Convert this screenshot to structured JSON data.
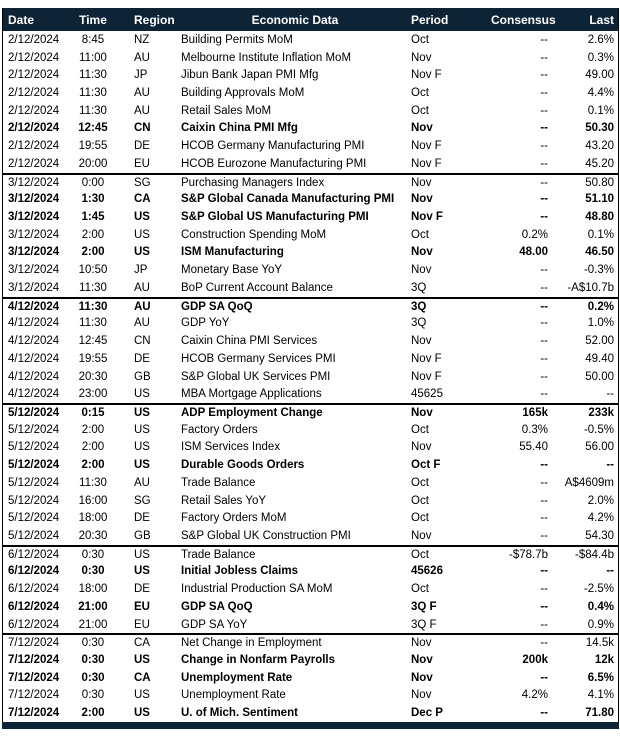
{
  "colors": {
    "header_bg": "#0d2336",
    "header_text": "#ffffff",
    "row_text": "#000000",
    "separator": "#000000"
  },
  "table": {
    "columns": [
      {
        "key": "date",
        "label": "Date"
      },
      {
        "key": "time",
        "label": "Time"
      },
      {
        "key": "region",
        "label": "Region"
      },
      {
        "key": "name",
        "label": "Economic Data"
      },
      {
        "key": "period",
        "label": "Period"
      },
      {
        "key": "consensus",
        "label": "Consensus"
      },
      {
        "key": "last",
        "label": "Last"
      }
    ],
    "rows": [
      {
        "date": "2/12/2024",
        "time": "8:45",
        "region": "NZ",
        "name": "Building Permits MoM",
        "period": "Oct",
        "consensus": "--",
        "last": "2.6%",
        "bold": false,
        "day_break": false
      },
      {
        "date": "2/12/2024",
        "time": "11:00",
        "region": "AU",
        "name": "Melbourne Institute Inflation MoM",
        "period": "Nov",
        "consensus": "--",
        "last": "0.3%",
        "bold": false,
        "day_break": false
      },
      {
        "date": "2/12/2024",
        "time": "11:30",
        "region": "JP",
        "name": "Jibun Bank Japan PMI Mfg",
        "period": "Nov F",
        "consensus": "--",
        "last": "49.00",
        "bold": false,
        "day_break": false
      },
      {
        "date": "2/12/2024",
        "time": "11:30",
        "region": "AU",
        "name": "Building Approvals MoM",
        "period": "Oct",
        "consensus": "--",
        "last": "4.4%",
        "bold": false,
        "day_break": false
      },
      {
        "date": "2/12/2024",
        "time": "11:30",
        "region": "AU",
        "name": "Retail Sales MoM",
        "period": "Oct",
        "consensus": "--",
        "last": "0.1%",
        "bold": false,
        "day_break": false
      },
      {
        "date": "2/12/2024",
        "time": "12:45",
        "region": "CN",
        "name": "Caixin China PMI Mfg",
        "period": "Nov",
        "consensus": "--",
        "last": "50.30",
        "bold": true,
        "day_break": false
      },
      {
        "date": "2/12/2024",
        "time": "19:55",
        "region": "DE",
        "name": "HCOB Germany Manufacturing PMI",
        "period": "Nov F",
        "consensus": "--",
        "last": "43.20",
        "bold": false,
        "day_break": false
      },
      {
        "date": "2/12/2024",
        "time": "20:00",
        "region": "EU",
        "name": "HCOB Eurozone Manufacturing PMI",
        "period": "Nov F",
        "consensus": "--",
        "last": "45.20",
        "bold": false,
        "day_break": false
      },
      {
        "date": "3/12/2024",
        "time": "0:00",
        "region": "SG",
        "name": "Purchasing Managers Index",
        "period": "Nov",
        "consensus": "--",
        "last": "50.80",
        "bold": false,
        "day_break": true
      },
      {
        "date": "3/12/2024",
        "time": "1:30",
        "region": "CA",
        "name": "S&P Global Canada Manufacturing PMI",
        "period": "Nov",
        "consensus": "--",
        "last": "51.10",
        "bold": true,
        "day_break": false
      },
      {
        "date": "3/12/2024",
        "time": "1:45",
        "region": "US",
        "name": "S&P Global US Manufacturing PMI",
        "period": "Nov F",
        "consensus": "--",
        "last": "48.80",
        "bold": true,
        "day_break": false
      },
      {
        "date": "3/12/2024",
        "time": "2:00",
        "region": "US",
        "name": "Construction Spending MoM",
        "period": "Oct",
        "consensus": "0.2%",
        "last": "0.1%",
        "bold": false,
        "day_break": false
      },
      {
        "date": "3/12/2024",
        "time": "2:00",
        "region": "US",
        "name": "ISM Manufacturing",
        "period": "Nov",
        "consensus": "48.00",
        "last": "46.50",
        "bold": true,
        "day_break": false
      },
      {
        "date": "3/12/2024",
        "time": "10:50",
        "region": "JP",
        "name": "Monetary Base YoY",
        "period": "Nov",
        "consensus": "--",
        "last": "-0.3%",
        "bold": false,
        "day_break": false
      },
      {
        "date": "3/12/2024",
        "time": "11:30",
        "region": "AU",
        "name": "BoP Current Account Balance",
        "period": "3Q",
        "consensus": "--",
        "last": "-A$10.7b",
        "bold": false,
        "day_break": false
      },
      {
        "date": "4/12/2024",
        "time": "11:30",
        "region": "AU",
        "name": "GDP SA QoQ",
        "period": "3Q",
        "consensus": "--",
        "last": "0.2%",
        "bold": true,
        "day_break": true
      },
      {
        "date": "4/12/2024",
        "time": "11:30",
        "region": "AU",
        "name": "GDP YoY",
        "period": "3Q",
        "consensus": "--",
        "last": "1.0%",
        "bold": false,
        "day_break": false
      },
      {
        "date": "4/12/2024",
        "time": "12:45",
        "region": "CN",
        "name": "Caixin China PMI Services",
        "period": "Nov",
        "consensus": "--",
        "last": "52.00",
        "bold": false,
        "day_break": false
      },
      {
        "date": "4/12/2024",
        "time": "19:55",
        "region": "DE",
        "name": "HCOB Germany Services PMI",
        "period": "Nov F",
        "consensus": "--",
        "last": "49.40",
        "bold": false,
        "day_break": false
      },
      {
        "date": "4/12/2024",
        "time": "20:30",
        "region": "GB",
        "name": "S&P Global UK Services PMI",
        "period": "Nov F",
        "consensus": "--",
        "last": "50.00",
        "bold": false,
        "day_break": false
      },
      {
        "date": "4/12/2024",
        "time": "23:00",
        "region": "US",
        "name": "MBA Mortgage Applications",
        "period": "45625",
        "consensus": "--",
        "last": "--",
        "bold": false,
        "day_break": false
      },
      {
        "date": "5/12/2024",
        "time": "0:15",
        "region": "US",
        "name": "ADP Employment Change",
        "period": "Nov",
        "consensus": "165k",
        "last": "233k",
        "bold": true,
        "day_break": true
      },
      {
        "date": "5/12/2024",
        "time": "2:00",
        "region": "US",
        "name": "Factory Orders",
        "period": "Oct",
        "consensus": "0.3%",
        "last": "-0.5%",
        "bold": false,
        "day_break": false
      },
      {
        "date": "5/12/2024",
        "time": "2:00",
        "region": "US",
        "name": "ISM Services Index",
        "period": "Nov",
        "consensus": "55.40",
        "last": "56.00",
        "bold": false,
        "day_break": false
      },
      {
        "date": "5/12/2024",
        "time": "2:00",
        "region": "US",
        "name": "Durable Goods Orders",
        "period": "Oct F",
        "consensus": "--",
        "last": "--",
        "bold": true,
        "day_break": false
      },
      {
        "date": "5/12/2024",
        "time": "11:30",
        "region": "AU",
        "name": "Trade Balance",
        "period": "Oct",
        "consensus": "--",
        "last": "A$4609m",
        "bold": false,
        "day_break": false
      },
      {
        "date": "5/12/2024",
        "time": "16:00",
        "region": "SG",
        "name": "Retail Sales YoY",
        "period": "Oct",
        "consensus": "--",
        "last": "2.0%",
        "bold": false,
        "day_break": false
      },
      {
        "date": "5/12/2024",
        "time": "18:00",
        "region": "DE",
        "name": "Factory Orders MoM",
        "period": "Oct",
        "consensus": "--",
        "last": "4.2%",
        "bold": false,
        "day_break": false
      },
      {
        "date": "5/12/2024",
        "time": "20:30",
        "region": "GB",
        "name": "S&P Global UK Construction PMI",
        "period": "Nov",
        "consensus": "--",
        "last": "54.30",
        "bold": false,
        "day_break": false
      },
      {
        "date": "6/12/2024",
        "time": "0:30",
        "region": "US",
        "name": "Trade Balance",
        "period": "Oct",
        "consensus": "-$78.7b",
        "last": "-$84.4b",
        "bold": false,
        "day_break": true
      },
      {
        "date": "6/12/2024",
        "time": "0:30",
        "region": "US",
        "name": "Initial Jobless Claims",
        "period": "45626",
        "consensus": "--",
        "last": "--",
        "bold": true,
        "day_break": false
      },
      {
        "date": "6/12/2024",
        "time": "18:00",
        "region": "DE",
        "name": "Industrial Production SA MoM",
        "period": "Oct",
        "consensus": "--",
        "last": "-2.5%",
        "bold": false,
        "day_break": false
      },
      {
        "date": "6/12/2024",
        "time": "21:00",
        "region": "EU",
        "name": "GDP SA QoQ",
        "period": "3Q F",
        "consensus": "--",
        "last": "0.4%",
        "bold": true,
        "day_break": false
      },
      {
        "date": "6/12/2024",
        "time": "21:00",
        "region": "EU",
        "name": "GDP SA YoY",
        "period": "3Q F",
        "consensus": "--",
        "last": "0.9%",
        "bold": false,
        "day_break": false
      },
      {
        "date": "7/12/2024",
        "time": "0:30",
        "region": "CA",
        "name": "Net Change in Employment",
        "period": "Nov",
        "consensus": "--",
        "last": "14.5k",
        "bold": false,
        "day_break": true
      },
      {
        "date": "7/12/2024",
        "time": "0:30",
        "region": "US",
        "name": "Change in Nonfarm Payrolls",
        "period": "Nov",
        "consensus": "200k",
        "last": "12k",
        "bold": true,
        "day_break": false
      },
      {
        "date": "7/12/2024",
        "time": "0:30",
        "region": "CA",
        "name": "Unemployment Rate",
        "period": "Nov",
        "consensus": "--",
        "last": "6.5%",
        "bold": true,
        "day_break": false
      },
      {
        "date": "7/12/2024",
        "time": "0:30",
        "region": "US",
        "name": "Unemployment Rate",
        "period": "Nov",
        "consensus": "4.2%",
        "last": "4.1%",
        "bold": false,
        "day_break": false
      },
      {
        "date": "7/12/2024",
        "time": "2:00",
        "region": "US",
        "name": "U. of Mich. Sentiment",
        "period": "Dec P",
        "consensus": "--",
        "last": "71.80",
        "bold": true,
        "day_break": false
      }
    ]
  }
}
